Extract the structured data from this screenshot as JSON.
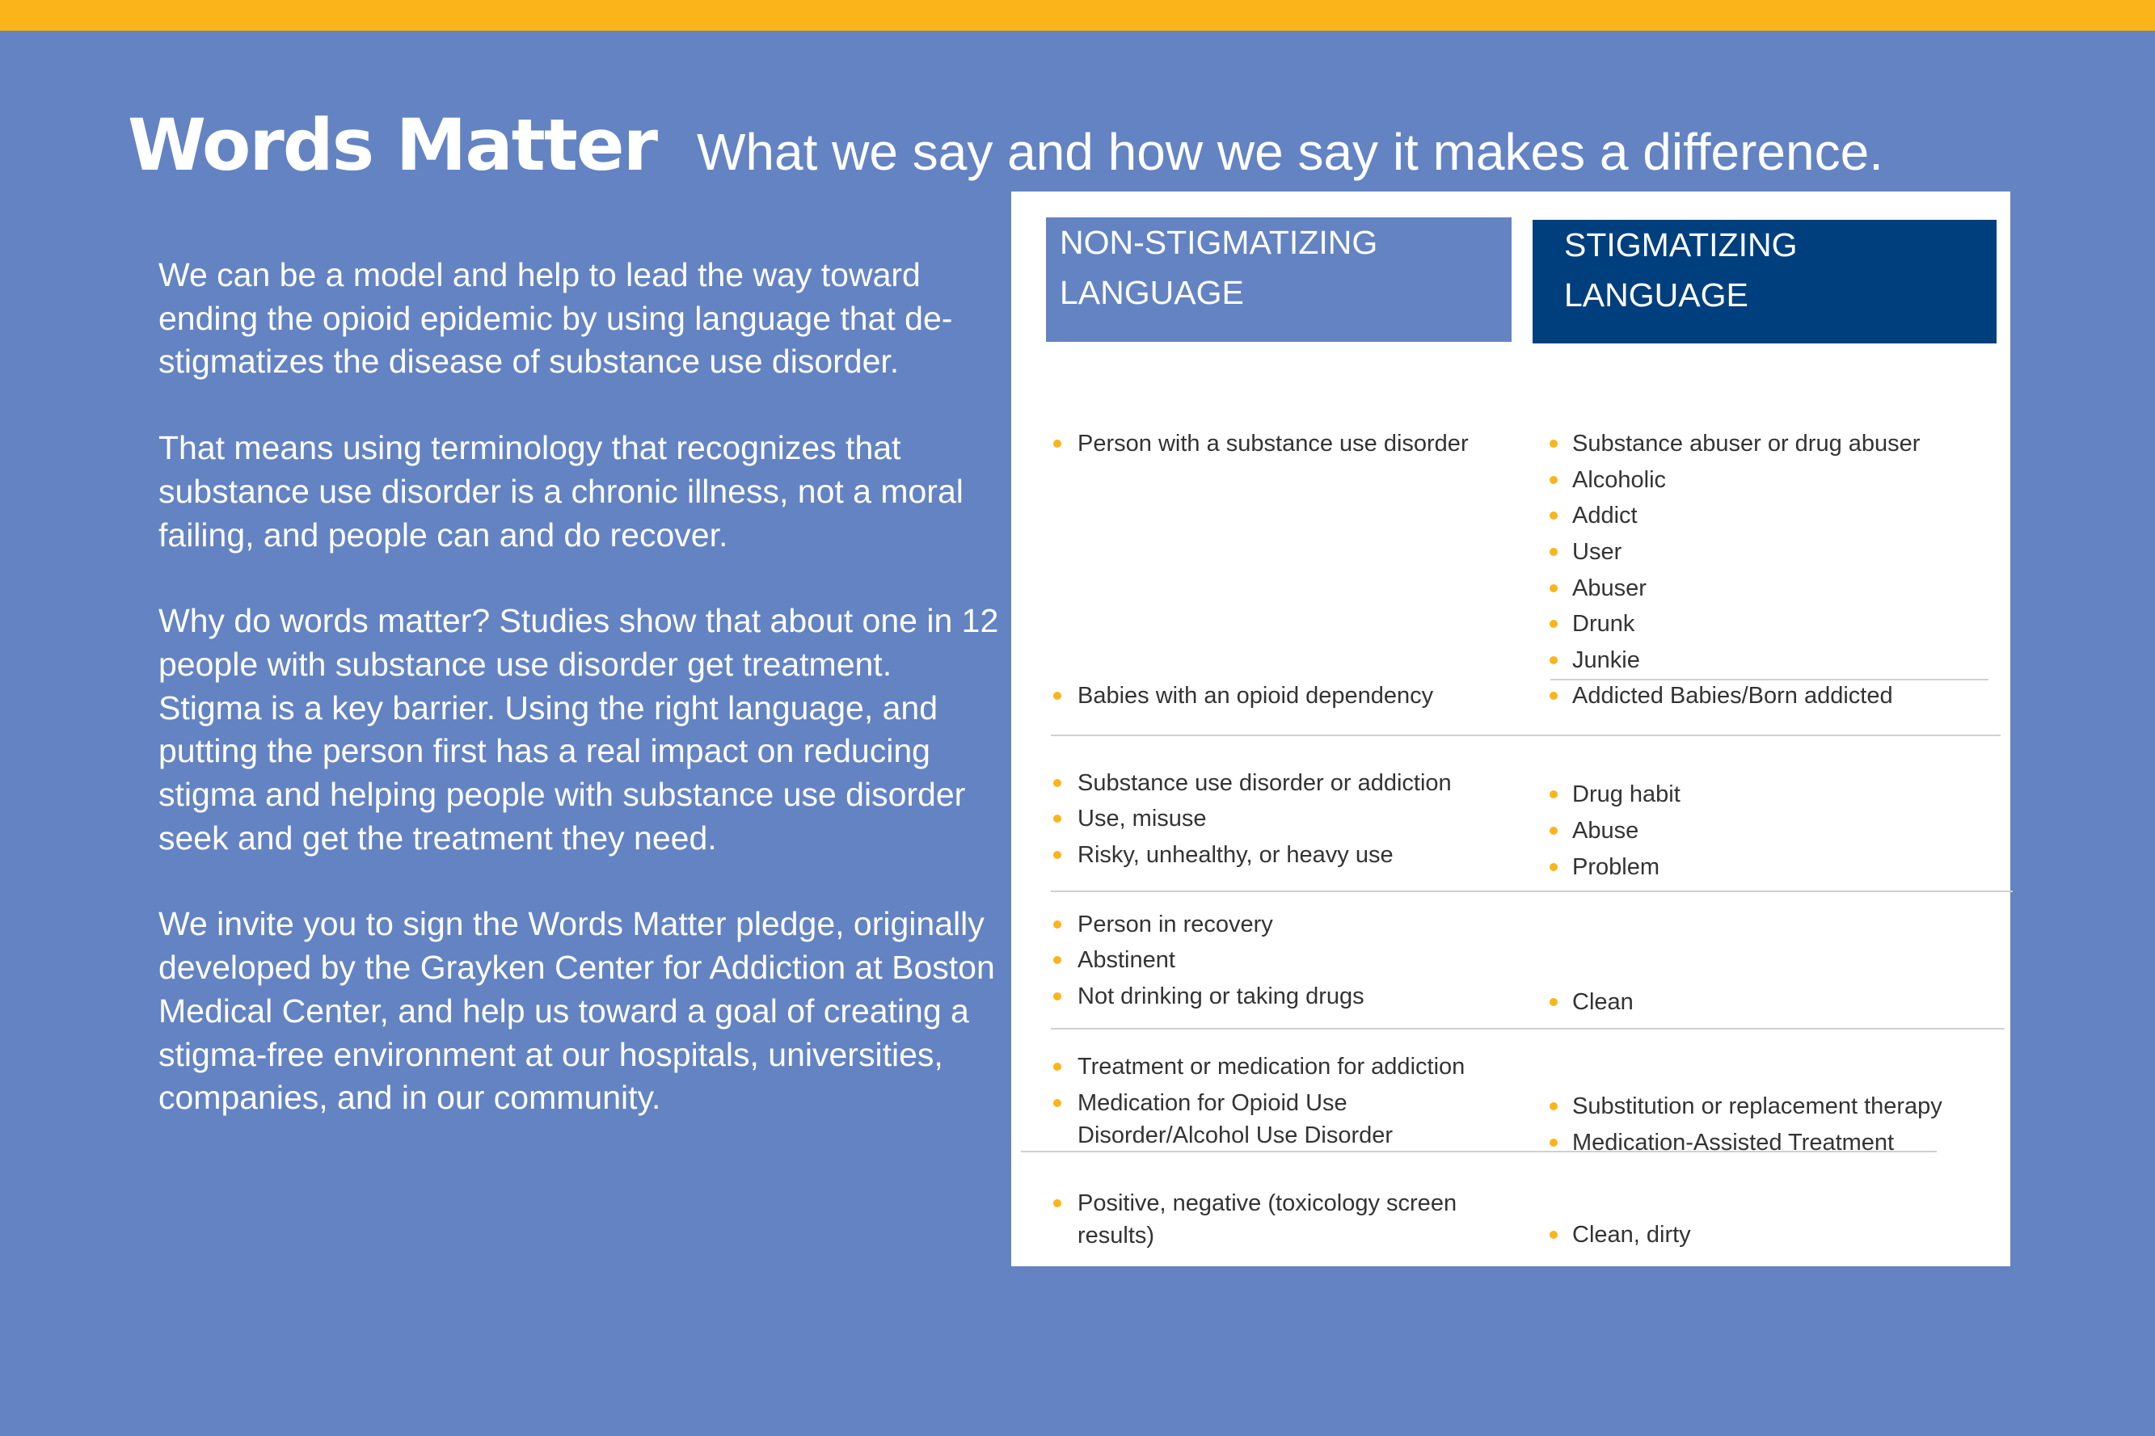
{
  "header": {
    "title": "Words Matter",
    "subtitle": "What we say and how we say it makes a difference."
  },
  "body": {
    "paragraphs": [
      "We can be a model and help to lead the way toward ending the opioid epidemic by using language that de-stigmatizes the disease of substance use disorder.",
      "That means using terminology that recognizes that substance use disorder is a chronic illness, not a moral failing, and people can and do recover.",
      "Why do words matter? Studies show that about one in 12 people with substance use disorder get treatment. Stigma is a key barrier. Using the right language, and putting the person first has a real impact on reducing stigma and helping people with substance use disorder seek and get the treatment they need.",
      "We invite you to sign the Words Matter pledge, originally developed by the Grayken Center for Addiction at Boston Medical Center, and help us toward a goal of creating a stigma-free environment at our hospitals, universities, companies, and in our community."
    ]
  },
  "table": {
    "non_header": [
      "NON-STIGMATIZING",
      "LANGUAGE"
    ],
    "stig_header": [
      "STIGMATIZING",
      "LANGUAGE"
    ],
    "non_items": [
      "Person with a substance use disorder",
      "Babies with an opioid dependency",
      "Substance use disorder or addiction",
      "Use, misuse",
      "Risky, unhealthy, or heavy use",
      "Person in recovery",
      "Abstinent",
      "Not drinking or taking drugs",
      "Treatment or medication for addiction",
      "Medication for Opioid Use",
      "Disorder/Alcohol Use Disorder",
      "Positive, negative (toxicology screen",
      "results)"
    ],
    "stig_items": [
      "Substance abuser or drug abuser",
      "Alcoholic",
      "Addict",
      "User",
      "Abuser",
      "Drunk",
      "Junkie",
      "Addicted Babies/Born addicted",
      "Drug habit",
      "Abuse",
      "Problem",
      "Clean",
      "Substitution or replacement therapy",
      "Medication-Assisted Treatment",
      "Clean, dirty"
    ]
  },
  "colors": {
    "background": "#6383c3",
    "accent": "#fbb41a",
    "dark_blue": "#003f7d"
  }
}
